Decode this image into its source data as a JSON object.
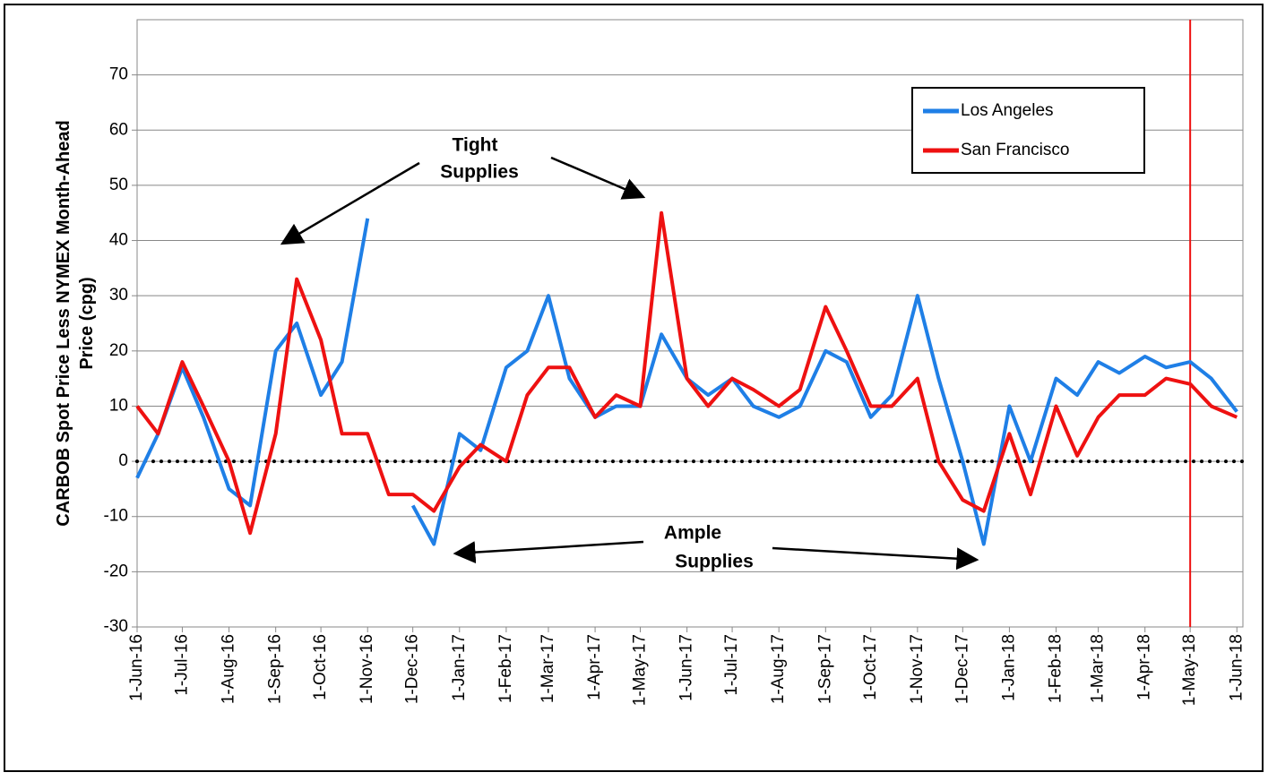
{
  "chart_data": {
    "type": "line",
    "ylabel": [
      "CARBOB Spot Price Less NYMEX Month-Ahead",
      "Price (cpg)"
    ],
    "annotations": [
      "Tight",
      "Supplies",
      "Ample",
      "Supplies"
    ],
    "x": [
      "2016-06-01",
      "2016-06-15",
      "2016-07-01",
      "2016-07-15",
      "2016-08-01",
      "2016-08-15",
      "2016-09-01",
      "2016-09-15",
      "2016-10-01",
      "2016-10-15",
      "2016-11-01",
      "2016-11-15",
      "2016-12-01",
      "2016-12-15",
      "2017-01-01",
      "2017-01-15",
      "2017-02-01",
      "2017-02-15",
      "2017-03-01",
      "2017-03-15",
      "2017-04-01",
      "2017-04-15",
      "2017-05-01",
      "2017-05-15",
      "2017-06-01",
      "2017-06-15",
      "2017-07-01",
      "2017-07-15",
      "2017-08-01",
      "2017-08-15",
      "2017-09-01",
      "2017-09-15",
      "2017-10-01",
      "2017-10-15",
      "2017-11-01",
      "2017-11-15",
      "2017-12-01",
      "2017-12-15",
      "2018-01-01",
      "2018-01-15",
      "2018-02-01",
      "2018-02-15",
      "2018-03-01",
      "2018-03-15",
      "2018-04-01",
      "2018-04-15",
      "2018-05-01",
      "2018-05-15",
      "2018-06-01"
    ],
    "series": [
      {
        "name": "Los Angeles",
        "color": "#1f7fe6",
        "values": [
          -3,
          5,
          17,
          8,
          -5,
          -8,
          20,
          25,
          12,
          18,
          44,
          null,
          -8,
          -15,
          5,
          2,
          17,
          20,
          30,
          15,
          8,
          10,
          10,
          23,
          15,
          12,
          15,
          10,
          8,
          10,
          20,
          18,
          8,
          12,
          30,
          15,
          0,
          -15,
          10,
          0,
          15,
          12,
          18,
          16,
          19,
          17,
          18,
          15,
          9
        ]
      },
      {
        "name": "San Francisco",
        "color": "#ee1111",
        "values": [
          10,
          5,
          18,
          10,
          0,
          -13,
          5,
          33,
          22,
          5,
          5,
          -6,
          -6,
          -9,
          -1,
          3,
          0,
          12,
          17,
          17,
          8,
          12,
          10,
          45,
          15,
          10,
          15,
          13,
          10,
          13,
          28,
          20,
          10,
          10,
          15,
          0,
          -7,
          -9,
          5,
          -6,
          10,
          1,
          8,
          12,
          12,
          15,
          14,
          10,
          8
        ]
      }
    ],
    "xlim": [
      "2016-06-01",
      "2018-06-05"
    ],
    "xticks": [
      {
        "value": "2016-06-01",
        "label": "1-Jun-16"
      },
      {
        "value": "2016-07-01",
        "label": "1-Jul-16"
      },
      {
        "value": "2016-08-01",
        "label": "1-Aug-16"
      },
      {
        "value": "2016-09-01",
        "label": "1-Sep-16"
      },
      {
        "value": "2016-10-01",
        "label": "1-Oct-16"
      },
      {
        "value": "2016-11-01",
        "label": "1-Nov-16"
      },
      {
        "value": "2016-12-01",
        "label": "1-Dec-16"
      },
      {
        "value": "2017-01-01",
        "label": "1-Jan-17"
      },
      {
        "value": "2017-02-01",
        "label": "1-Feb-17"
      },
      {
        "value": "2017-03-01",
        "label": "1-Mar-17"
      },
      {
        "value": "2017-04-01",
        "label": "1-Apr-17"
      },
      {
        "value": "2017-05-01",
        "label": "1-May-17"
      },
      {
        "value": "2017-06-01",
        "label": "1-Jun-17"
      },
      {
        "value": "2017-07-01",
        "label": "1-Jul-17"
      },
      {
        "value": "2017-08-01",
        "label": "1-Aug-17"
      },
      {
        "value": "2017-09-01",
        "label": "1-Sep-17"
      },
      {
        "value": "2017-10-01",
        "label": "1-Oct-17"
      },
      {
        "value": "2017-11-01",
        "label": "1-Nov-17"
      },
      {
        "value": "2017-12-01",
        "label": "1-Dec-17"
      },
      {
        "value": "2018-01-01",
        "label": "1-Jan-18"
      },
      {
        "value": "2018-02-01",
        "label": "1-Feb-18"
      },
      {
        "value": "2018-03-01",
        "label": "1-Mar-18"
      },
      {
        "value": "2018-04-01",
        "label": "1-Apr-18"
      },
      {
        "value": "2018-05-01",
        "label": "1-May-18"
      },
      {
        "value": "2018-06-01",
        "label": "1-Jun-18"
      }
    ],
    "ylim": [
      -30,
      80
    ],
    "yticks": [
      -30,
      -20,
      -10,
      0,
      10,
      20,
      30,
      40,
      50,
      60,
      70
    ],
    "grid": true,
    "vline": {
      "x": "2018-05-01",
      "color": "#ee1111"
    },
    "legend": "upper right"
  }
}
